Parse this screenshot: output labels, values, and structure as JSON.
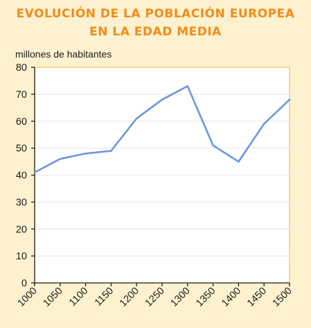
{
  "chart_data": {
    "type": "line",
    "title": "EVOLUCIÓN DE LA POBLACIÓN EUROPEA EN LA EDAD MEDIA",
    "title_lines": [
      "EVOLUCIÓN DE LA POBLACIÓN EUROPEA",
      "EN LA EDAD MEDIA"
    ],
    "xlabel": "",
    "ylabel": "millones de habitantes",
    "x": [
      1000,
      1050,
      1100,
      1150,
      1200,
      1250,
      1300,
      1350,
      1400,
      1450,
      1500
    ],
    "y": [
      41,
      46,
      48,
      49,
      61,
      68,
      73,
      51,
      45,
      59,
      68
    ],
    "xlim": [
      1000,
      1500
    ],
    "ylim": [
      0,
      80
    ],
    "yticks": [
      0,
      10,
      20,
      30,
      40,
      50,
      60,
      70,
      80
    ],
    "xticks": [
      1000,
      1050,
      1100,
      1150,
      1200,
      1250,
      1300,
      1350,
      1400,
      1450,
      1500
    ],
    "grid": true,
    "legend": "none",
    "colors": {
      "line": "#6b95df",
      "plot_background": "#ffffff",
      "page_background": "#fdf1cf",
      "title": "#f08c1a",
      "frame": "#f5c451",
      "grid": "#dfe6ee",
      "axis": "#1e1e1e"
    }
  }
}
